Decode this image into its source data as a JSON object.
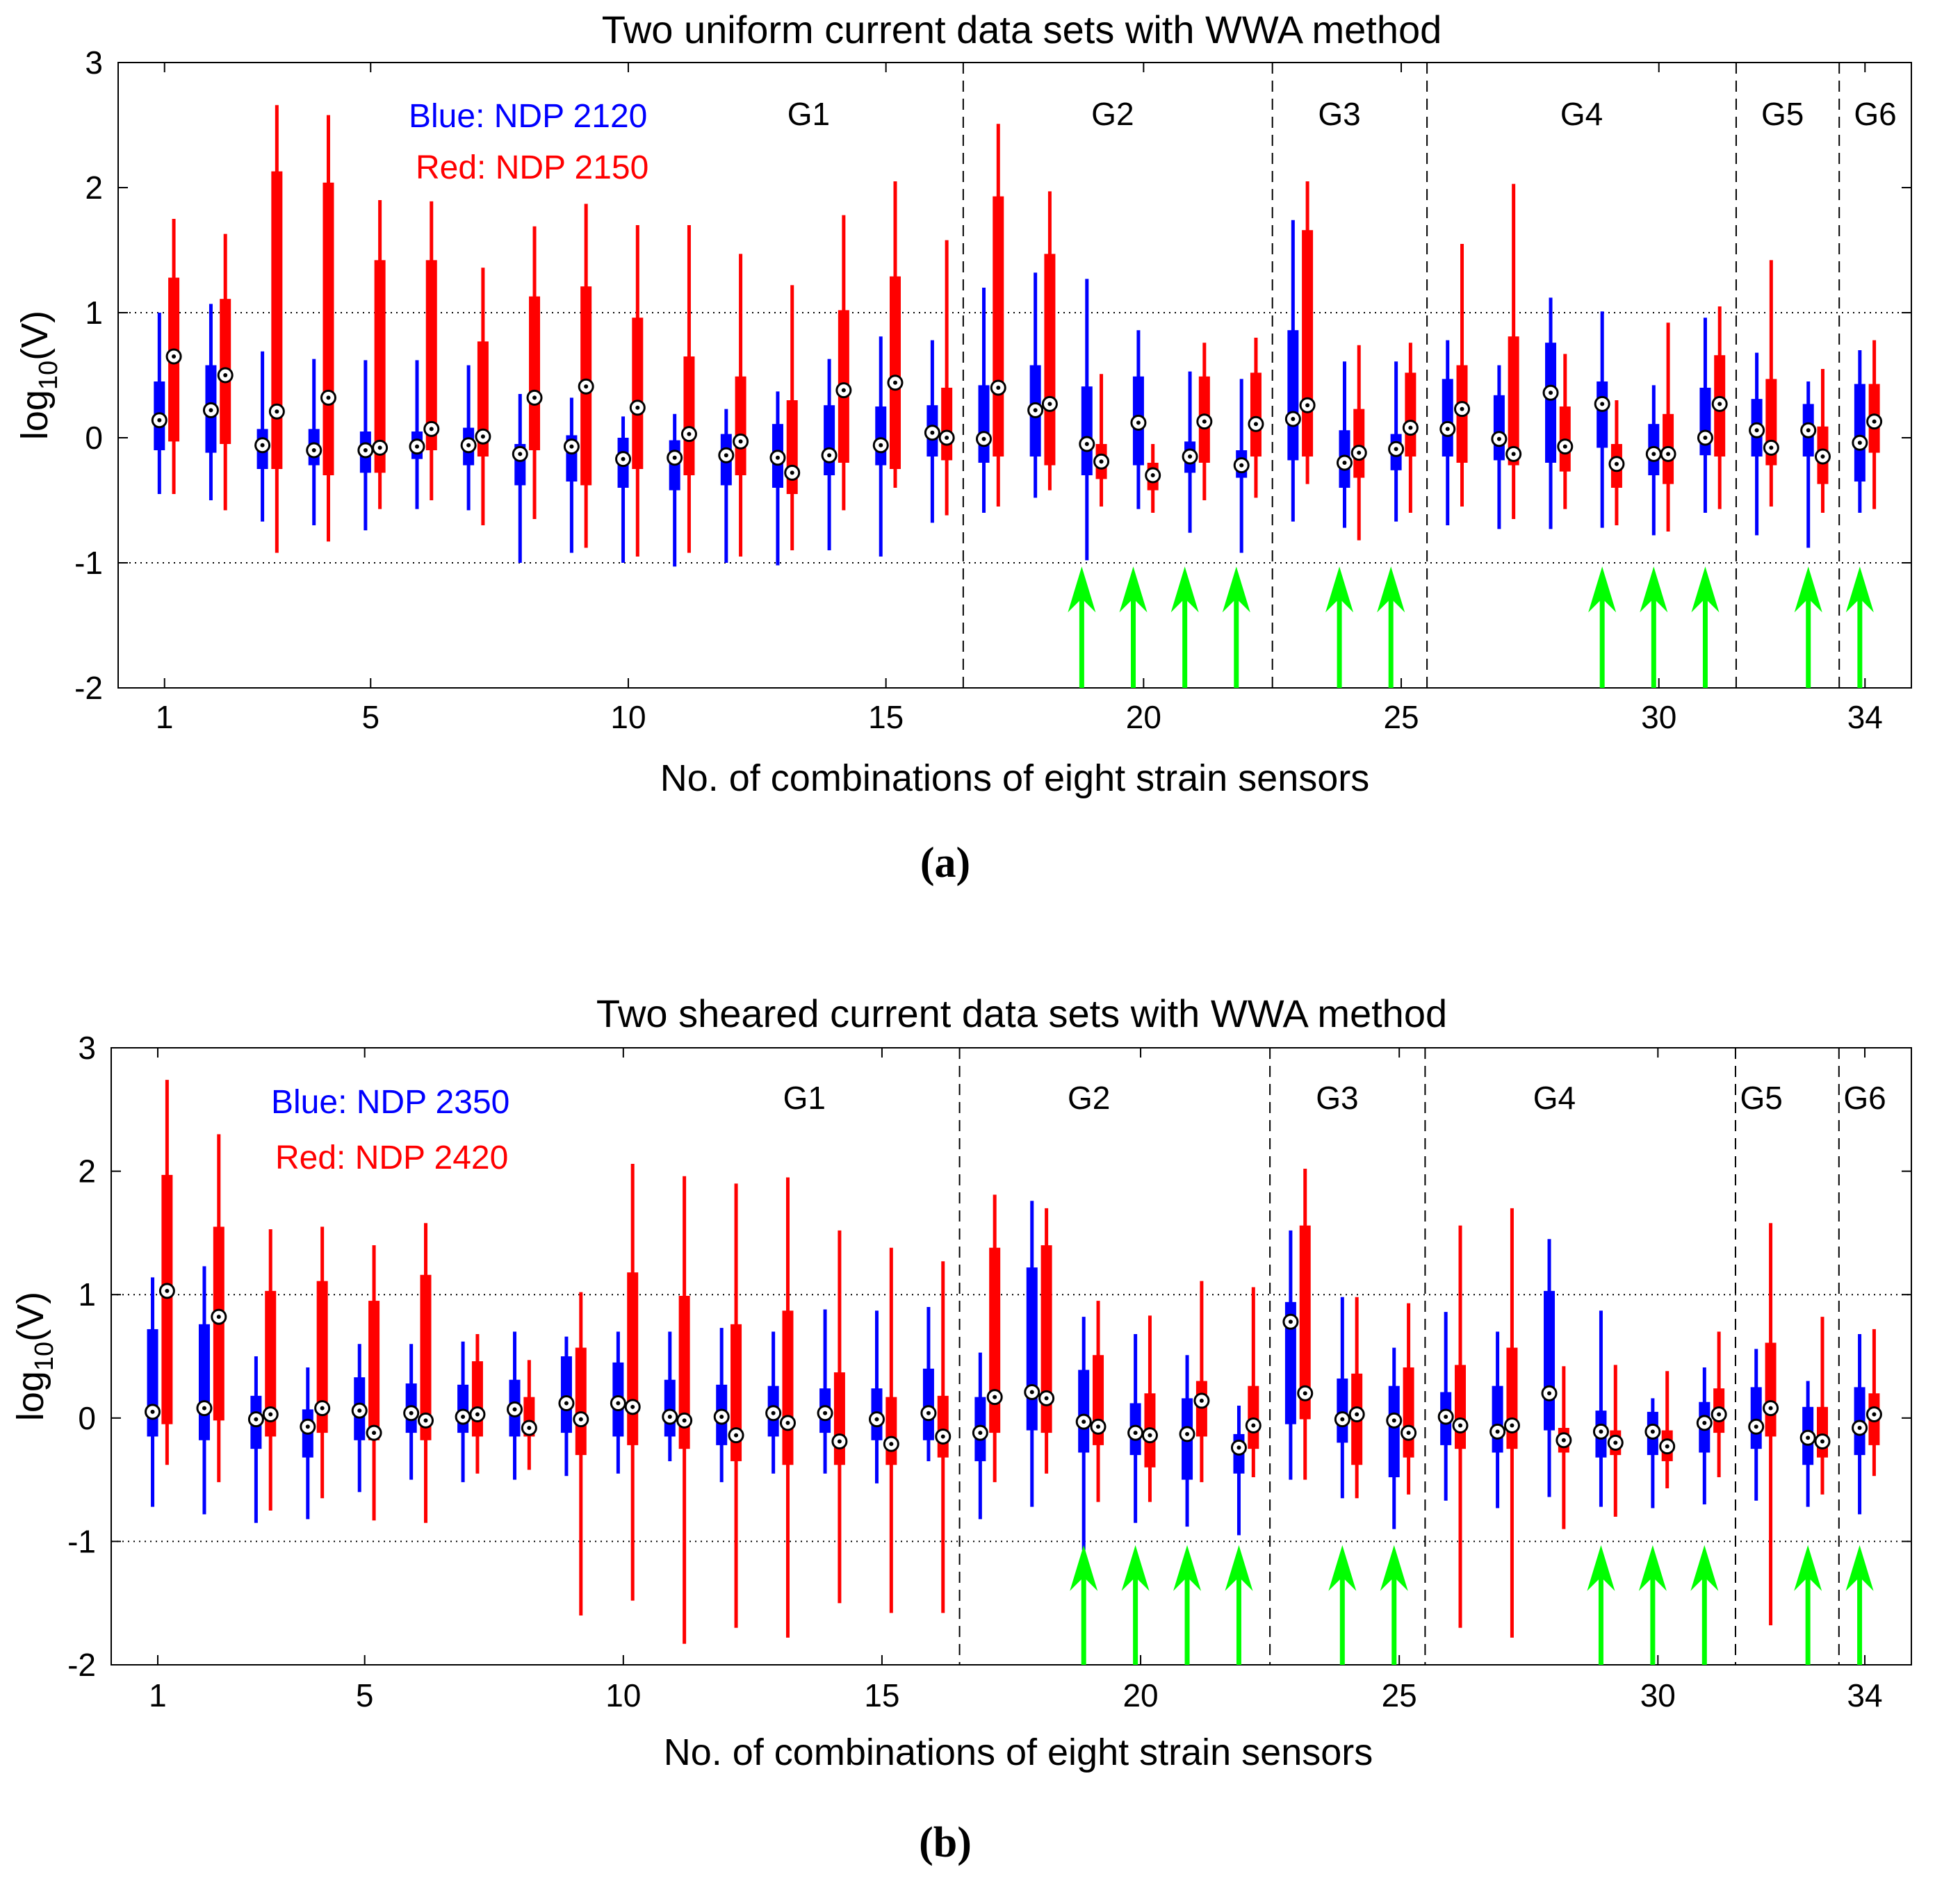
{
  "colors": {
    "blue": "#0000ff",
    "red": "#ff0000",
    "arrow": "#00ff00",
    "axis": "#000000"
  },
  "chart_data": [
    {
      "type": "box",
      "panel_label": "(a)",
      "title": "Two uniform current data sets with WWA method",
      "xlabel": "No. of combinations of eight strain sensors",
      "ylabel_main": "log",
      "ylabel_sub": "10",
      "ylabel_tail": "(V)",
      "xlim": [
        0.1,
        34.9
      ],
      "ylim": [
        -2,
        3
      ],
      "xticks": [
        1,
        5,
        10,
        15,
        20,
        25,
        30,
        34
      ],
      "yticks": [
        -2,
        -1,
        0,
        1,
        2,
        3
      ],
      "gridlines_y": [
        1,
        -1
      ],
      "group_dividers": [
        16.5,
        22.5,
        25.5,
        31.5,
        33.5
      ],
      "groups": [
        "G1",
        "G2",
        "G3",
        "G4",
        "G5",
        "G6"
      ],
      "group_label_x": [
        13.5,
        19.4,
        23.8,
        28.5,
        32.4,
        34.2
      ],
      "legend": [
        {
          "text": "Blue: NDP 2120",
          "color": "blue"
        },
        {
          "text": "Red: NDP 2150",
          "color": "red"
        }
      ],
      "arrows_at": [
        18.8,
        19.8,
        20.8,
        21.8,
        23.8,
        24.8,
        28.9,
        29.9,
        30.9,
        32.9,
        33.9
      ],
      "series": [
        {
          "name": "NDP 2120",
          "color": "blue",
          "median": [
            0.14,
            0.22,
            -0.06,
            -0.1,
            -0.1,
            -0.07,
            -0.06,
            -0.13,
            -0.07,
            -0.17,
            -0.16,
            -0.14,
            -0.16,
            -0.14,
            -0.06,
            0.04,
            -0.01,
            0.22,
            -0.05,
            0.12,
            -0.15,
            -0.22,
            0.15,
            -0.2,
            -0.09,
            0.07,
            -0.01,
            0.36,
            0.27,
            -0.13,
            0.0,
            0.06,
            0.06,
            -0.04
          ],
          "q1": [
            -0.1,
            -0.12,
            -0.25,
            -0.22,
            -0.28,
            -0.17,
            -0.22,
            -0.38,
            -0.35,
            -0.4,
            -0.42,
            -0.38,
            -0.4,
            -0.3,
            -0.22,
            -0.15,
            -0.2,
            -0.15,
            -0.3,
            -0.22,
            -0.28,
            -0.32,
            -0.18,
            -0.4,
            -0.26,
            -0.15,
            -0.18,
            -0.2,
            -0.08,
            -0.3,
            -0.14,
            -0.15,
            -0.15,
            -0.35
          ],
          "q3": [
            0.45,
            0.58,
            0.07,
            0.07,
            0.05,
            0.05,
            0.08,
            -0.05,
            0.02,
            0.0,
            -0.02,
            0.03,
            0.11,
            0.26,
            0.25,
            0.26,
            0.42,
            0.58,
            0.41,
            0.49,
            -0.03,
            -0.1,
            0.86,
            0.06,
            0.03,
            0.47,
            0.34,
            0.76,
            0.45,
            0.11,
            0.4,
            0.31,
            0.27,
            0.43
          ],
          "whisker_low": [
            -0.45,
            -0.5,
            -0.67,
            -0.7,
            -0.74,
            -0.57,
            -0.58,
            -1.0,
            -0.92,
            -1.0,
            -1.03,
            -1.0,
            -1.02,
            -0.9,
            -0.95,
            -0.68,
            -0.6,
            -0.48,
            -0.98,
            -0.57,
            -0.76,
            -0.92,
            -0.67,
            -0.72,
            -0.67,
            -0.7,
            -0.73,
            -0.73,
            -0.72,
            -0.78,
            -0.6,
            -0.78,
            -0.88,
            -0.6
          ],
          "whisker_high": [
            1.0,
            1.07,
            0.69,
            0.63,
            0.62,
            0.62,
            0.58,
            0.35,
            0.32,
            0.17,
            0.19,
            0.23,
            0.37,
            0.63,
            0.81,
            0.78,
            1.2,
            1.32,
            1.27,
            0.86,
            0.53,
            0.47,
            1.74,
            0.61,
            0.61,
            0.78,
            0.58,
            1.12,
            1.01,
            0.42,
            0.96,
            0.68,
            0.45,
            0.7
          ]
        },
        {
          "name": "NDP 2150",
          "color": "red",
          "median": [
            0.65,
            0.5,
            0.21,
            0.32,
            -0.08,
            0.07,
            0.01,
            0.32,
            0.41,
            0.24,
            0.03,
            -0.03,
            -0.28,
            0.38,
            0.44,
            0.0,
            0.4,
            0.27,
            -0.19,
            -0.3,
            0.13,
            0.11,
            0.26,
            -0.12,
            0.08,
            0.23,
            -0.13,
            -0.07,
            -0.21,
            -0.13,
            0.27,
            -0.08,
            -0.15,
            0.13
          ],
          "q1": [
            -0.03,
            -0.05,
            -0.25,
            -0.3,
            -0.28,
            -0.1,
            -0.15,
            -0.1,
            -0.38,
            -0.25,
            -0.3,
            -0.3,
            -0.45,
            -0.2,
            -0.25,
            -0.18,
            -0.15,
            -0.22,
            -0.33,
            -0.42,
            -0.2,
            -0.15,
            -0.15,
            -0.32,
            -0.15,
            -0.2,
            -0.22,
            -0.27,
            -0.4,
            -0.37,
            -0.15,
            -0.22,
            -0.37,
            -0.12
          ],
          "q3": [
            1.28,
            1.11,
            2.13,
            2.04,
            1.42,
            1.42,
            0.77,
            1.13,
            1.21,
            0.96,
            0.65,
            0.49,
            0.3,
            1.02,
            1.29,
            0.4,
            1.93,
            1.47,
            -0.05,
            -0.2,
            0.49,
            0.52,
            1.66,
            0.23,
            0.52,
            0.58,
            0.81,
            0.25,
            -0.05,
            0.19,
            0.66,
            0.47,
            0.09,
            0.43
          ],
          "whisker_low": [
            -0.45,
            -0.58,
            -0.92,
            -0.83,
            -0.57,
            -0.5,
            -0.7,
            -0.65,
            -0.88,
            -0.95,
            -0.92,
            -0.95,
            -0.9,
            -0.58,
            -0.4,
            -0.62,
            -0.55,
            -0.42,
            -0.55,
            -0.6,
            -0.5,
            -0.48,
            -0.37,
            -0.82,
            -0.6,
            -0.55,
            -0.65,
            -0.57,
            -0.7,
            -0.75,
            -0.57,
            -0.55,
            -0.6,
            -0.57
          ],
          "whisker_high": [
            1.75,
            1.63,
            2.66,
            2.58,
            1.9,
            1.89,
            1.36,
            1.69,
            1.87,
            1.7,
            1.7,
            1.47,
            1.22,
            1.78,
            2.05,
            1.58,
            2.51,
            1.97,
            0.51,
            -0.05,
            0.76,
            0.8,
            2.05,
            0.74,
            0.76,
            1.55,
            2.03,
            0.67,
            0.3,
            0.92,
            1.05,
            1.42,
            0.55,
            0.78
          ]
        }
      ]
    },
    {
      "type": "box",
      "panel_label": "(b)",
      "title": "Two sheared current data sets with WWA method",
      "xlabel": "No. of combinations of eight strain sensors",
      "ylabel_main": "log",
      "ylabel_sub": "10",
      "ylabel_tail": "(V)",
      "xlim": [
        0.1,
        34.9
      ],
      "ylim": [
        -2,
        3
      ],
      "xticks": [
        1,
        5,
        10,
        15,
        20,
        25,
        30,
        34
      ],
      "yticks": [
        -2,
        -1,
        0,
        1,
        2,
        3
      ],
      "gridlines_y": [
        1,
        -1
      ],
      "group_dividers": [
        16.5,
        22.5,
        25.5,
        31.5,
        33.5
      ],
      "groups": [
        "G1",
        "G2",
        "G3",
        "G4",
        "G5",
        "G6"
      ],
      "group_label_x": [
        13.5,
        19.0,
        23.8,
        28.0,
        32.0,
        34.0
      ],
      "legend": [
        {
          "text": "Blue: NDP 2350",
          "color": "blue"
        },
        {
          "text": "Red: NDP 2420",
          "color": "red"
        }
      ],
      "arrows_at": [
        18.9,
        19.9,
        20.9,
        21.9,
        23.9,
        24.9,
        28.9,
        29.9,
        30.9,
        32.9,
        33.9
      ],
      "series": [
        {
          "name": "NDP 2350",
          "color": "blue",
          "median": [
            0.05,
            0.08,
            -0.01,
            -0.07,
            0.06,
            0.04,
            0.01,
            0.07,
            0.12,
            0.12,
            0.01,
            0.01,
            0.04,
            0.04,
            -0.01,
            0.04,
            -0.12,
            0.21,
            -0.03,
            -0.12,
            -0.13,
            -0.24,
            0.78,
            -0.01,
            -0.02,
            0.01,
            -0.11,
            0.2,
            -0.11,
            -0.11,
            -0.04,
            -0.07,
            -0.16,
            -0.08
          ],
          "q1": [
            -0.15,
            -0.18,
            -0.25,
            -0.32,
            -0.18,
            -0.12,
            -0.12,
            -0.15,
            -0.12,
            -0.15,
            -0.15,
            -0.22,
            -0.15,
            -0.12,
            -0.18,
            -0.18,
            -0.35,
            -0.1,
            -0.28,
            -0.3,
            -0.5,
            -0.45,
            -0.05,
            -0.2,
            -0.48,
            -0.22,
            -0.28,
            -0.1,
            -0.32,
            -0.3,
            -0.28,
            -0.25,
            -0.38,
            -0.3
          ],
          "q3": [
            0.72,
            0.76,
            0.18,
            0.07,
            0.33,
            0.28,
            0.27,
            0.31,
            0.5,
            0.45,
            0.31,
            0.27,
            0.26,
            0.24,
            0.24,
            0.4,
            0.17,
            1.22,
            0.39,
            0.12,
            0.16,
            -0.13,
            0.94,
            0.32,
            0.26,
            0.21,
            0.26,
            1.03,
            0.06,
            0.05,
            0.13,
            0.25,
            0.09,
            0.25
          ],
          "whisker_low": [
            -0.72,
            -0.78,
            -0.85,
            -0.82,
            -0.6,
            -0.5,
            -0.52,
            -0.5,
            -0.47,
            -0.45,
            -0.35,
            -0.52,
            -0.45,
            -0.45,
            -0.53,
            -0.35,
            -0.82,
            -0.72,
            -1.07,
            -0.85,
            -0.88,
            -0.95,
            -0.5,
            -0.65,
            -0.9,
            -0.67,
            -0.73,
            -0.64,
            -0.72,
            -0.73,
            -0.7,
            -0.67,
            -0.72,
            -0.78
          ],
          "whisker_high": [
            1.14,
            1.23,
            0.5,
            0.41,
            0.6,
            0.6,
            0.62,
            0.7,
            0.66,
            0.7,
            0.7,
            0.73,
            0.7,
            0.88,
            0.87,
            0.9,
            0.53,
            1.76,
            0.82,
            0.68,
            0.51,
            0.1,
            1.52,
            0.98,
            0.57,
            0.86,
            0.7,
            1.45,
            0.87,
            0.16,
            0.41,
            0.56,
            0.3,
            0.68
          ]
        },
        {
          "name": "NDP 2420",
          "color": "red",
          "median": [
            1.03,
            0.82,
            0.03,
            0.08,
            -0.12,
            -0.02,
            0.03,
            -0.08,
            -0.01,
            0.09,
            -0.02,
            -0.14,
            -0.04,
            -0.19,
            -0.21,
            -0.15,
            0.17,
            0.16,
            -0.07,
            -0.14,
            0.14,
            -0.06,
            0.2,
            0.03,
            -0.12,
            -0.06,
            -0.06,
            -0.18,
            -0.2,
            -0.23,
            0.03,
            0.08,
            -0.19,
            0.03
          ],
          "q1": [
            -0.05,
            -0.02,
            -0.15,
            -0.12,
            -0.18,
            -0.18,
            -0.15,
            -0.15,
            -0.3,
            -0.22,
            -0.25,
            -0.35,
            -0.38,
            -0.38,
            -0.38,
            -0.32,
            -0.12,
            -0.12,
            -0.22,
            -0.4,
            -0.15,
            -0.25,
            -0.01,
            -0.38,
            -0.32,
            -0.25,
            -0.25,
            -0.28,
            -0.3,
            -0.35,
            -0.12,
            -0.15,
            -0.32,
            -0.22
          ],
          "q3": [
            1.97,
            1.55,
            1.03,
            1.11,
            0.95,
            1.16,
            0.46,
            0.17,
            0.57,
            1.18,
            0.99,
            0.76,
            0.87,
            0.37,
            0.17,
            0.18,
            1.38,
            1.4,
            0.51,
            0.2,
            0.3,
            0.26,
            1.56,
            0.36,
            0.41,
            0.43,
            0.57,
            -0.08,
            -0.1,
            -0.1,
            0.24,
            0.61,
            0.09,
            0.2
          ],
          "whisker_low": [
            -0.38,
            -0.52,
            -0.75,
            -0.65,
            -0.83,
            -0.85,
            -0.45,
            -0.42,
            -1.6,
            -1.48,
            -1.83,
            -1.7,
            -1.78,
            -1.5,
            -1.58,
            -1.58,
            -0.52,
            -0.45,
            -0.68,
            -0.68,
            -0.52,
            -0.48,
            -0.5,
            -0.65,
            -0.62,
            -1.7,
            -1.78,
            -0.9,
            -0.8,
            -0.57,
            -0.48,
            -1.68,
            -0.62,
            -0.47
          ],
          "whisker_high": [
            2.74,
            2.3,
            1.53,
            1.55,
            1.4,
            1.58,
            0.68,
            0.47,
            1.02,
            2.06,
            1.96,
            1.9,
            1.95,
            1.52,
            1.38,
            1.27,
            1.81,
            1.7,
            0.95,
            0.83,
            1.11,
            1.06,
            2.02,
            0.98,
            0.93,
            1.56,
            1.7,
            0.42,
            0.43,
            0.38,
            0.7,
            1.58,
            0.82,
            0.72
          ]
        }
      ]
    }
  ]
}
